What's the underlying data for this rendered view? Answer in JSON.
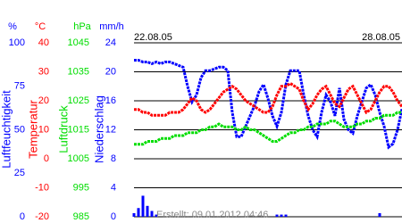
{
  "chart_data": {
    "type": "line",
    "x_labels": [
      "22.08.05",
      "28.08.05"
    ],
    "footer": "Erstellt: 09.01.2012 04:46",
    "grid": true,
    "axes": [
      {
        "unit": "%",
        "label": "Luftfeuchtigkeit",
        "color": "#0000ff",
        "ylim": [
          0,
          100
        ],
        "yticks": [
          0,
          25,
          50,
          75,
          100
        ]
      },
      {
        "unit": "°C",
        "label": "Temperatur",
        "color": "#ff0000",
        "ylim": [
          -20,
          40
        ],
        "yticks": [
          -20,
          -10,
          0,
          10,
          20,
          30,
          40
        ]
      },
      {
        "unit": "hPa",
        "label": "Luftdruck",
        "color": "#00dd00",
        "ylim": [
          985,
          1045
        ],
        "yticks": [
          985,
          995,
          1005,
          1015,
          1025,
          1035,
          1045
        ]
      },
      {
        "unit": "mm/h",
        "label": "Niederschlag",
        "color": "#0000ff",
        "ylim": [
          0,
          24
        ],
        "yticks": [
          0,
          4,
          8,
          12,
          16,
          20,
          24
        ]
      }
    ],
    "series": [
      {
        "axis": 0,
        "kind": "line",
        "color": "#0000ff",
        "values": [
          90,
          90,
          89,
          89,
          88,
          89,
          88,
          89,
          89,
          88,
          87,
          86,
          75,
          66,
          70,
          80,
          84,
          84,
          85,
          86,
          86,
          84,
          60,
          46,
          46,
          52,
          58,
          64,
          72,
          76,
          68,
          58,
          52,
          60,
          76,
          84,
          84,
          84,
          70,
          58,
          50,
          46,
          60,
          70,
          66,
          58,
          74,
          56,
          50,
          48,
          58,
          66,
          74,
          76,
          70,
          60,
          52,
          40,
          42,
          50,
          62
        ]
      },
      {
        "axis": 1,
        "kind": "line",
        "color": "#ff0000",
        "values": [
          17,
          17,
          16,
          16,
          15,
          15,
          15,
          15,
          16,
          16,
          16,
          17,
          19,
          21,
          20,
          17,
          16,
          17,
          19,
          21,
          23,
          24,
          25,
          24,
          22,
          20,
          19,
          18,
          17,
          16,
          16,
          18,
          22,
          25,
          25,
          26,
          25,
          24,
          20,
          17,
          19,
          22,
          24,
          25,
          22,
          19,
          18,
          21,
          24,
          25,
          22,
          19,
          16,
          17,
          20,
          23,
          25,
          25,
          23,
          20,
          18
        ]
      },
      {
        "axis": 2,
        "kind": "line",
        "color": "#00dd00",
        "values": [
          1010,
          1010,
          1010,
          1011,
          1011,
          1011,
          1012,
          1012,
          1012,
          1013,
          1013,
          1013,
          1014,
          1014,
          1014,
          1015,
          1015,
          1016,
          1016,
          1017,
          1016,
          1016,
          1016,
          1015,
          1015,
          1016,
          1015,
          1015,
          1014,
          1013,
          1012,
          1011,
          1011,
          1012,
          1013,
          1014,
          1014,
          1015,
          1015,
          1016,
          1016,
          1017,
          1017,
          1017,
          1018,
          1018,
          1017,
          1016,
          1016,
          1016,
          1017,
          1017,
          1018,
          1018,
          1019,
          1019,
          1020,
          1020,
          1020,
          1021,
          1021
        ]
      },
      {
        "axis": 3,
        "kind": "bar",
        "color": "#0000ff",
        "values": [
          0.5,
          1.2,
          2.9,
          1.5,
          0.8,
          0.3,
          0,
          0,
          0,
          0,
          0,
          0,
          0,
          0,
          0,
          0,
          0,
          0,
          0,
          0,
          0,
          0,
          0,
          0,
          0,
          0,
          0,
          0,
          0,
          0,
          0,
          0,
          0.3,
          0.3,
          0.3,
          0,
          0,
          0,
          0,
          0,
          0,
          0,
          0,
          0,
          0,
          0,
          0,
          0,
          0,
          0,
          0,
          0,
          0,
          0,
          0,
          0.5,
          0,
          0,
          0,
          0,
          0
        ]
      }
    ]
  }
}
